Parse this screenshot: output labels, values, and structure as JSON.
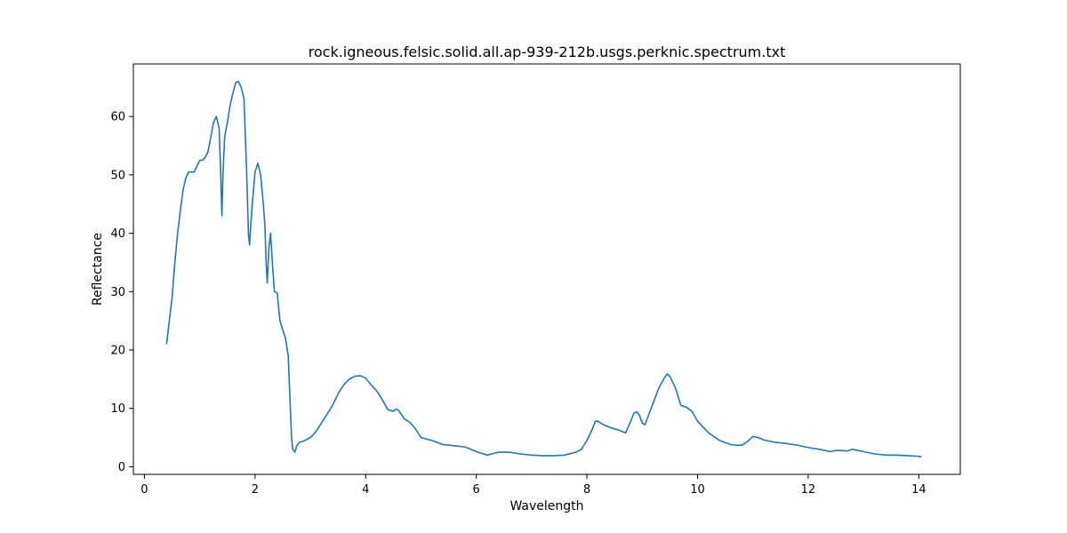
{
  "chart_data": {
    "type": "line",
    "title": "rock.igneous.felsic.solid.all.ap-939-212b.usgs.perknic.spectrum.txt",
    "xlabel": "Wavelength",
    "ylabel": "Reflectance",
    "xlim": [
      -0.2,
      14.75
    ],
    "ylim": [
      -1.3,
      69.0
    ],
    "xticks": [
      0,
      2,
      4,
      6,
      8,
      10,
      12,
      14
    ],
    "yticks": [
      0,
      10,
      20,
      30,
      40,
      50,
      60
    ],
    "grid": false,
    "line_color": "#1f77b4",
    "series": [
      {
        "x": [
          0.4,
          0.45,
          0.5,
          0.55,
          0.6,
          0.65,
          0.7,
          0.75,
          0.8,
          0.85,
          0.9,
          0.95,
          1.0,
          1.05,
          1.1,
          1.15,
          1.2,
          1.25,
          1.3,
          1.35,
          1.38,
          1.4,
          1.42,
          1.45,
          1.5,
          1.55,
          1.6,
          1.65,
          1.7,
          1.75,
          1.8,
          1.85,
          1.88,
          1.9,
          1.92,
          1.95,
          2.0,
          2.05,
          2.1,
          2.15,
          2.18,
          2.2,
          2.22,
          2.25,
          2.28,
          2.3,
          2.32,
          2.35,
          2.4,
          2.45,
          2.5,
          2.55,
          2.6,
          2.63,
          2.66,
          2.68,
          2.7,
          2.72,
          2.75,
          2.8,
          2.85,
          2.9,
          3.0,
          3.1,
          3.2,
          3.3,
          3.4,
          3.5,
          3.6,
          3.7,
          3.8,
          3.9,
          4.0,
          4.1,
          4.2,
          4.3,
          4.4,
          4.5,
          4.55,
          4.6,
          4.7,
          4.8,
          4.9,
          5.0,
          5.2,
          5.4,
          5.6,
          5.8,
          6.0,
          6.1,
          6.2,
          6.4,
          6.6,
          6.8,
          7.0,
          7.2,
          7.4,
          7.6,
          7.8,
          7.9,
          8.0,
          8.1,
          8.15,
          8.2,
          8.3,
          8.4,
          8.5,
          8.6,
          8.7,
          8.8,
          8.85,
          8.9,
          8.95,
          9.0,
          9.05,
          9.1,
          9.2,
          9.3,
          9.4,
          9.45,
          9.5,
          9.6,
          9.7,
          9.8,
          9.9,
          10.0,
          10.2,
          10.4,
          10.6,
          10.7,
          10.8,
          10.9,
          11.0,
          11.1,
          11.2,
          11.4,
          11.6,
          11.8,
          12.0,
          12.2,
          12.4,
          12.5,
          12.6,
          12.7,
          12.8,
          12.9,
          13.0,
          13.2,
          13.4,
          13.6,
          13.8,
          14.0,
          14.05
        ],
        "y": [
          21.0,
          25.0,
          29.0,
          35.0,
          40.0,
          44.0,
          47.5,
          49.5,
          50.5,
          50.5,
          50.5,
          51.5,
          52.5,
          52.5,
          53.0,
          54.0,
          56.5,
          59.0,
          60.0,
          58.0,
          50.0,
          43.0,
          50.0,
          56.5,
          59.0,
          62.0,
          64.0,
          65.8,
          66.0,
          65.0,
          63.0,
          50.0,
          40.0,
          38.0,
          41.0,
          45.0,
          50.5,
          52.0,
          50.0,
          45.0,
          41.0,
          35.0,
          31.5,
          37.5,
          40.0,
          37.0,
          34.0,
          30.0,
          29.8,
          25.0,
          23.5,
          22.0,
          19.0,
          12.0,
          5.0,
          3.0,
          2.8,
          2.5,
          3.5,
          4.2,
          4.3,
          4.5,
          5.0,
          6.0,
          7.5,
          9.0,
          10.5,
          12.5,
          14.0,
          15.0,
          15.5,
          15.6,
          15.2,
          14.0,
          13.0,
          11.5,
          9.8,
          9.5,
          9.9,
          9.6,
          8.2,
          7.6,
          6.5,
          5.0,
          4.5,
          3.8,
          3.6,
          3.4,
          2.6,
          2.3,
          2.0,
          2.5,
          2.5,
          2.2,
          2.0,
          1.9,
          1.9,
          2.0,
          2.5,
          3.0,
          4.5,
          6.5,
          7.8,
          7.8,
          7.2,
          6.8,
          6.5,
          6.2,
          5.8,
          8.0,
          9.2,
          9.4,
          8.8,
          7.5,
          7.2,
          8.5,
          11.0,
          13.5,
          15.2,
          15.9,
          15.5,
          13.5,
          10.5,
          10.2,
          9.5,
          7.8,
          5.8,
          4.5,
          3.8,
          3.7,
          3.7,
          4.3,
          5.2,
          5.0,
          4.6,
          4.2,
          4.0,
          3.7,
          3.3,
          3.0,
          2.6,
          2.8,
          2.8,
          2.7,
          3.0,
          2.8,
          2.6,
          2.2,
          2.0,
          2.0,
          1.9,
          1.8,
          1.7
        ]
      }
    ]
  }
}
